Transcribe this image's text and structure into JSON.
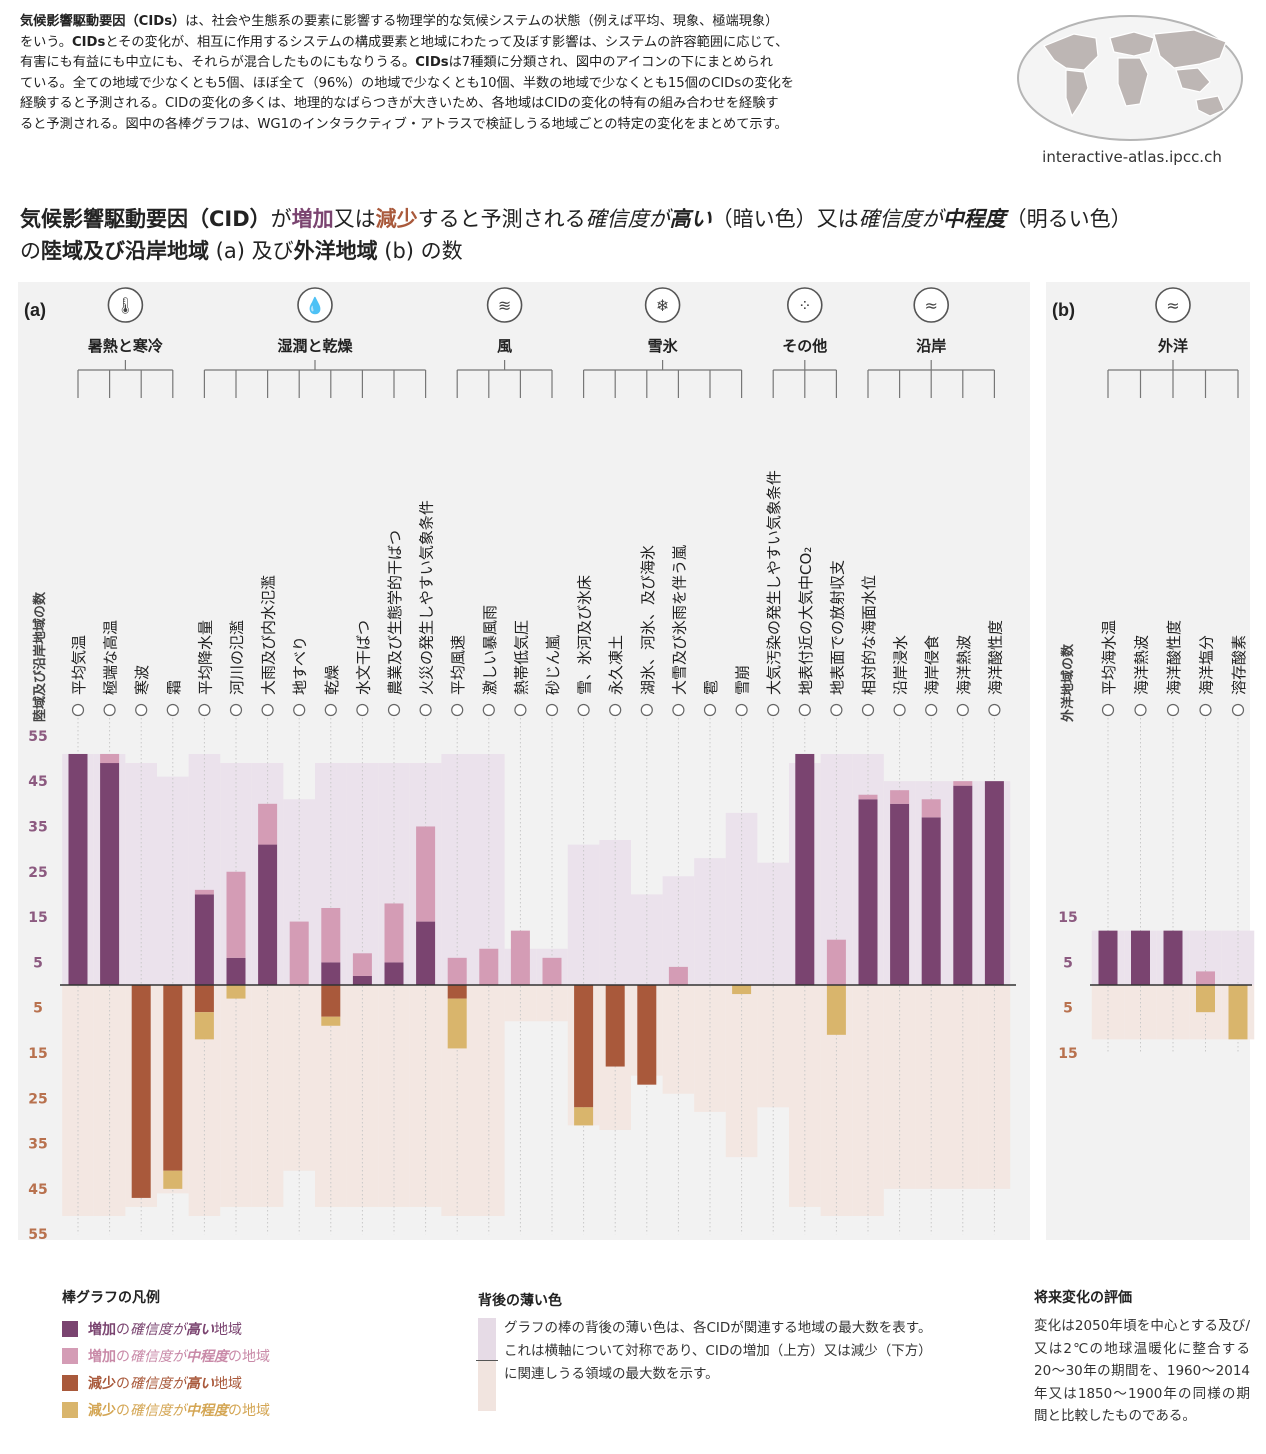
{
  "intro_text_parts": [
    {
      "text": "気候影響駆動要因（CIDs）",
      "bold": true
    },
    {
      "text": "は、社会や生態系の要素に影響する物理学的な気候システムの状態（例えば平均、現象、極端現象）\nをいう。",
      "bold": false
    },
    {
      "text": "CIDs",
      "bold": true
    },
    {
      "text": "とその変化が、相互に作用するシステムの構成要素と地域にわたって及ぼす影響は、システムの許容範囲に応じて、\n有害にも有益にも中立にも、それらが混合したものにもなりうる。",
      "bold": false
    },
    {
      "text": "CIDs",
      "bold": true
    },
    {
      "text": "は7種類に分類され、図中のアイコンの下にまとめられ\nている。全ての地域で少なくとも5個、ほぼ全て（96%）の地域で少なくとも10個、半数の地域で少なくとも15個のCIDsの変化を\n経験すると予測される。CIDの変化の多くは、地理的なばらつきが大きいため、各地域はCIDの変化の特有の組み合わせを経験す\nると予測される。図中の各棒グラフは、WG1のインタラクティブ・アトラスで検証しうる地域ごとの特定の変化をまとめて示す。",
      "bold": false
    }
  ],
  "atlas_url": "interactive-atlas.ipcc.ch",
  "headline_parts": [
    {
      "text": "気候影響駆動要因（CID）",
      "style": "bold"
    },
    {
      "text": "が",
      "style": "normal"
    },
    {
      "text": "増加",
      "style": "purple"
    },
    {
      "text": "又は",
      "style": "normal"
    },
    {
      "text": "減少",
      "style": "orange"
    },
    {
      "text": "すると予測される",
      "style": "normal"
    },
    {
      "text": "確信度が",
      "style": "italic"
    },
    {
      "text": "高い",
      "style": "bold-italic"
    },
    {
      "text": "（暗い色）又は",
      "style": "normal"
    },
    {
      "text": "確信度が",
      "style": "italic"
    },
    {
      "text": "中程度",
      "style": "bold-italic"
    },
    {
      "text": "（明るい色）\nの",
      "style": "normal"
    },
    {
      "text": "陸域及び沿岸地域",
      "style": "bold"
    },
    {
      "text": " (a) 及び",
      "style": "normal"
    },
    {
      "text": "外洋地域",
      "style": "bold"
    },
    {
      "text": " (b) の数",
      "style": "normal"
    }
  ],
  "colors": {
    "inc_high": "#7a4470",
    "inc_med": "#d49cb5",
    "dec_high": "#a9593b",
    "dec_med": "#d9b56c",
    "bg_inc": "#ebe2ec",
    "bg_dec": "#f3e7e2",
    "axis_inc": "#8c5a80",
    "axis_dec": "#b8714e"
  },
  "chart_data": [
    {
      "panel_label": "(a)",
      "type": "bar",
      "ylabel": "陸域及び沿岸地域の数",
      "ylim": [
        -55,
        55
      ],
      "ticks_up": [
        5,
        15,
        25,
        35,
        45,
        55
      ],
      "ticks_down": [
        5,
        15,
        25,
        35,
        45,
        55
      ],
      "groups": [
        {
          "name": "暑熱と寒冷",
          "icon": "thermometer-icon",
          "start": 0,
          "end": 3
        },
        {
          "name": "湿潤と乾燥",
          "icon": "water-drop-icon",
          "start": 4,
          "end": 11
        },
        {
          "name": "風",
          "icon": "wind-icon",
          "start": 12,
          "end": 15
        },
        {
          "name": "雪氷",
          "icon": "snowflake-icon",
          "start": 16,
          "end": 21
        },
        {
          "name": "その他",
          "icon": "particles-icon",
          "start": 22,
          "end": 24
        },
        {
          "name": "沿岸",
          "icon": "coast-waves-icon",
          "start": 25,
          "end": 29
        }
      ],
      "categories": [
        "平均気温",
        "極端な高温",
        "寒波",
        "霜",
        "平均降水量",
        "河川の氾濫",
        "大雨及び内水氾濫",
        "地すべり",
        "乾燥",
        "水文干ばつ",
        "農業及び生態学的干ばつ",
        "火災の発生しやすい気象条件",
        "平均風速",
        "激しい暴風雨",
        "熱帯低気圧",
        "砂じん嵐",
        "雪、氷河及び氷床",
        "永久凍土",
        "湖氷、河氷、及び海氷",
        "大雪及び氷雨を伴う嵐",
        "雹",
        "雪崩",
        "大気汚染の発生しやすい気象条件",
        "地表付近の大気中CO₂",
        "地表面での放射収支",
        "相対的な海面水位",
        "沿岸浸水",
        "海岸侵食",
        "海洋熱波",
        "海洋酸性度"
      ],
      "series": [
        {
          "name": "増加の確信度が高い地域",
          "values": [
            51,
            49,
            0,
            0,
            20,
            6,
            31,
            0,
            5,
            2,
            5,
            14,
            0,
            0,
            0,
            0,
            0,
            0,
            0,
            0,
            0,
            0,
            0,
            51,
            0,
            41,
            40,
            37,
            44,
            45
          ]
        },
        {
          "name": "増加の確信度が中程度の地域",
          "values": [
            0,
            2,
            0,
            0,
            1,
            19,
            9,
            14,
            12,
            5,
            13,
            21,
            6,
            8,
            12,
            6,
            0,
            0,
            0,
            4,
            0,
            0,
            0,
            0,
            10,
            1,
            3,
            4,
            1,
            0
          ]
        },
        {
          "name": "減少の確信度が高い地域",
          "values": [
            0,
            0,
            47,
            41,
            6,
            0,
            0,
            0,
            7,
            0,
            0,
            0,
            3,
            0,
            0,
            0,
            27,
            18,
            22,
            0,
            0,
            0,
            0,
            0,
            0,
            0,
            0,
            0,
            0,
            0
          ]
        },
        {
          "name": "減少の確信度が中程度の地域",
          "values": [
            0,
            0,
            0,
            4,
            6,
            3,
            0,
            0,
            2,
            0,
            0,
            0,
            11,
            0,
            0,
            0,
            4,
            0,
            0,
            0,
            0,
            2,
            0,
            0,
            11,
            0,
            0,
            0,
            0,
            0
          ]
        }
      ],
      "background_max": [
        51,
        51,
        49,
        46,
        51,
        49,
        49,
        41,
        49,
        49,
        49,
        49,
        51,
        51,
        8,
        8,
        31,
        32,
        20,
        24,
        28,
        38,
        27,
        49,
        51,
        51,
        45,
        45,
        45,
        45
      ]
    },
    {
      "panel_label": "(b)",
      "type": "bar",
      "ylabel": "外洋地域の数",
      "ylim": [
        -15,
        15
      ],
      "ticks_up": [
        5,
        15
      ],
      "ticks_down": [
        5,
        15
      ],
      "groups": [
        {
          "name": "外洋",
          "icon": "ocean-waves-icon",
          "start": 0,
          "end": 4
        }
      ],
      "categories": [
        "平均海水温",
        "海洋熱波",
        "海洋酸性度",
        "海洋塩分",
        "溶存酸素"
      ],
      "series": [
        {
          "name": "増加の確信度が高い地域",
          "values": [
            12,
            12,
            12,
            0,
            0
          ]
        },
        {
          "name": "増加の確信度が中程度の地域",
          "values": [
            0,
            0,
            0,
            3,
            0
          ]
        },
        {
          "name": "減少の確信度が高い地域",
          "values": [
            0,
            0,
            0,
            0,
            0
          ]
        },
        {
          "name": "減少の確信度が中程度の地域",
          "values": [
            0,
            0,
            0,
            6,
            12
          ]
        }
      ],
      "background_max": [
        12,
        12,
        12,
        12,
        12
      ]
    }
  ],
  "legend": {
    "title": "棒グラフの凡例",
    "items": [
      {
        "prefix": "増加",
        "mid": "の",
        "conf": "確信度が",
        "level": "高い",
        "suffix": "地域",
        "color": "#7a4470",
        "text_color": "#7a4470"
      },
      {
        "prefix": "増加",
        "mid": "の",
        "conf": "確信度が",
        "level": "中程度",
        "suffix": "の地域",
        "color": "#d49cb5",
        "text_color": "#c98aa8"
      },
      {
        "prefix": "減少",
        "mid": "の",
        "conf": "確信度が",
        "level": "高い",
        "suffix": "地域",
        "color": "#a9593b",
        "text_color": "#a9593b"
      },
      {
        "prefix": "減少",
        "mid": "の",
        "conf": "確信度が",
        "level": "中程度",
        "suffix": "の地域",
        "color": "#d9b56c",
        "text_color": "#d4a654"
      }
    ]
  },
  "background_note": {
    "title": "背後の薄い色",
    "text": "グラフの棒の背後の薄い色は、各CIDが関連する地域の最大数を表す。これは横軸について対称であり、CIDの増加（上方）又は減少（下方）に関連しうる領域の最大数を示す。"
  },
  "future_note": {
    "title": "将来変化の評価",
    "text": "変化は2050年頃を中心とする及び/又は2℃の地球温暖化に整合する20〜30年の期間を、1960〜2014年又は1850〜1900年の同様の期間と比較したものである。"
  }
}
